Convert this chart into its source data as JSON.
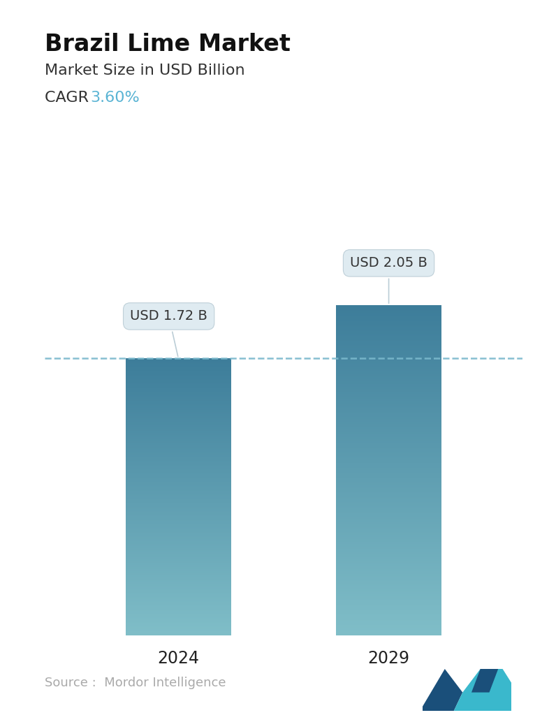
{
  "title": "Brazil Lime Market",
  "subtitle": "Market Size in USD Billion",
  "cagr_label": "CAGR ",
  "cagr_value": "3.60%",
  "cagr_color": "#5ab4d4",
  "categories": [
    "2024",
    "2029"
  ],
  "values": [
    1.72,
    2.05
  ],
  "bar_labels": [
    "USD 1.72 B",
    "USD 2.05 B"
  ],
  "bar_color_top": "#3d7d9a",
  "bar_color_bottom": "#80bec8",
  "dashed_line_color": "#7ab8cc",
  "dashed_line_y": 1.72,
  "source_text": "Source :  Mordor Intelligence",
  "source_color": "#aaaaaa",
  "background_color": "#ffffff",
  "title_fontsize": 24,
  "subtitle_fontsize": 16,
  "cagr_fontsize": 16,
  "bar_label_fontsize": 14,
  "xlabel_fontsize": 17,
  "source_fontsize": 13,
  "ylim": [
    0,
    2.6
  ],
  "bar_width": 0.22,
  "x_positions": [
    0.28,
    0.72
  ]
}
